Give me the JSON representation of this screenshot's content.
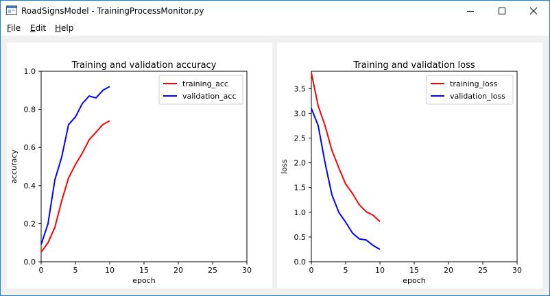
{
  "window": {
    "title": "RoadSignsModel - TrainingProcessMonitor.py",
    "controls": {
      "minimize": "minimize",
      "maximize": "maximize",
      "close": "close"
    }
  },
  "menu": [
    {
      "first": "F",
      "rest": "ile"
    },
    {
      "first": "E",
      "rest": "dit"
    },
    {
      "first": "H",
      "rest": "elp"
    }
  ],
  "chart_data": [
    {
      "type": "line",
      "title": "Training and validation accuracy",
      "xlabel": "epoch",
      "ylabel": "accuracy",
      "xlim": [
        0,
        30
      ],
      "ylim": [
        0,
        1.0
      ],
      "xticks": [
        "0",
        "5",
        "10",
        "15",
        "20",
        "25",
        "30"
      ],
      "yticks": [
        "0.0",
        "0.2",
        "0.4",
        "0.6",
        "0.8",
        "1.0"
      ],
      "legend_position": "top-right",
      "grid": false,
      "x": [
        0,
        1,
        2,
        3,
        4,
        5,
        6,
        7,
        8,
        9,
        10
      ],
      "series": [
        {
          "name": "training_acc",
          "color": "#ff0000",
          "values": [
            0.05,
            0.1,
            0.18,
            0.32,
            0.44,
            0.51,
            0.57,
            0.64,
            0.68,
            0.72,
            0.74
          ]
        },
        {
          "name": "validation_acc",
          "color": "#0000ff",
          "values": [
            0.09,
            0.2,
            0.43,
            0.55,
            0.72,
            0.76,
            0.83,
            0.87,
            0.86,
            0.9,
            0.92
          ]
        }
      ]
    },
    {
      "type": "line",
      "title": "Training and validation loss",
      "xlabel": "epoch",
      "ylabel": "loss",
      "xlim": [
        0,
        30
      ],
      "ylim": [
        0,
        3.85
      ],
      "xticks": [
        "0",
        "5",
        "10",
        "15",
        "20",
        "25",
        "30"
      ],
      "yticks": [
        "0.0",
        "0.5",
        "1.0",
        "1.5",
        "2.0",
        "2.5",
        "3.0",
        "3.5"
      ],
      "legend_position": "top-right",
      "grid": false,
      "x": [
        0,
        1,
        2,
        3,
        4,
        5,
        6,
        7,
        8,
        9,
        10
      ],
      "series": [
        {
          "name": "training_loss",
          "color": "#ff0000",
          "values": [
            3.82,
            3.15,
            2.75,
            2.25,
            1.9,
            1.57,
            1.38,
            1.15,
            1.01,
            0.94,
            0.81
          ]
        },
        {
          "name": "validation_loss",
          "color": "#0000ff",
          "values": [
            3.1,
            2.75,
            2.0,
            1.35,
            1.0,
            0.8,
            0.58,
            0.46,
            0.44,
            0.33,
            0.25
          ]
        }
      ]
    }
  ]
}
